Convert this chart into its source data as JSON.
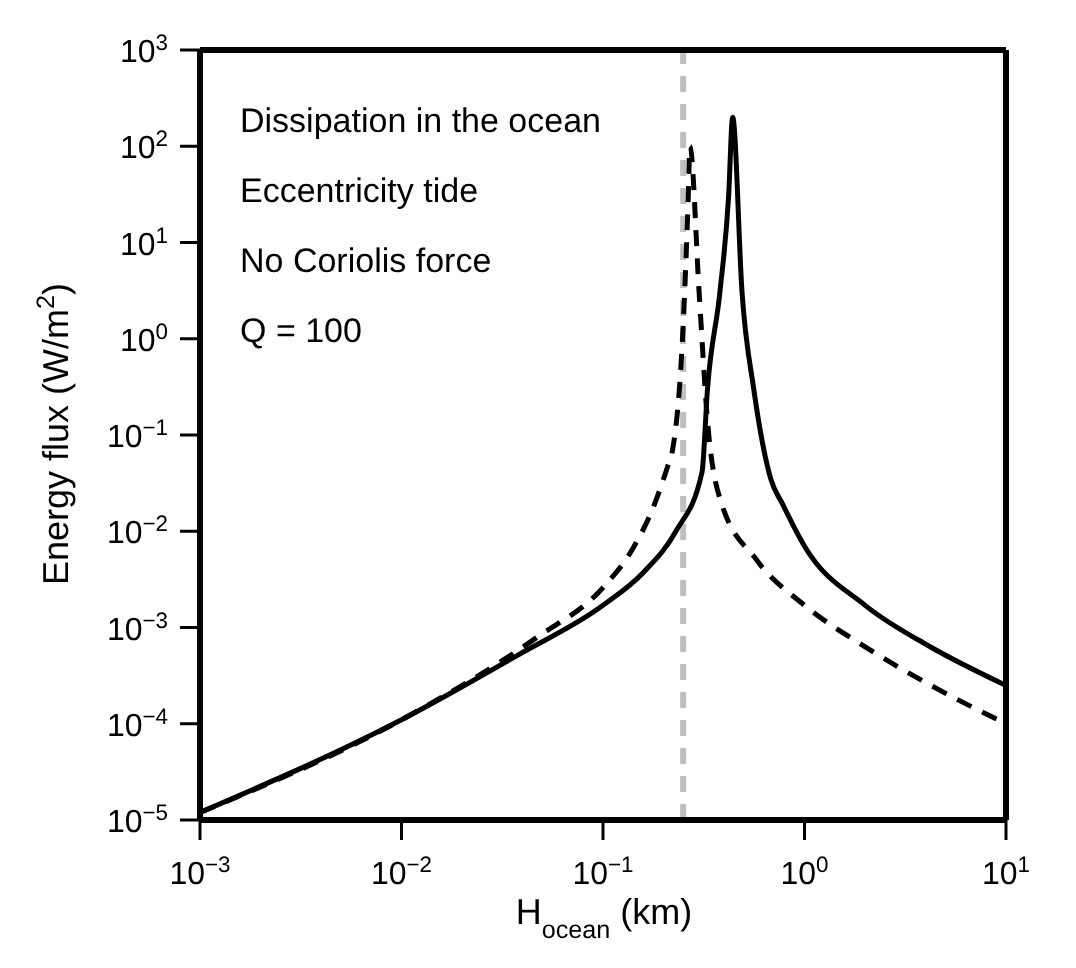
{
  "chart_data": {
    "type": "line",
    "xlabel": "H$_{ocean}$ (km)",
    "ylabel": "Energy flux (W/m$^{2}$)",
    "annotations": [
      "Dissipation in the ocean",
      "Eccentricity tide",
      "No Coriolis force",
      "Q = 100"
    ],
    "log": "xy",
    "legend": false,
    "grid": false,
    "marker": "none",
    "xlim": [
      0.001,
      10
    ],
    "ylim": [
      1e-05,
      1000
    ],
    "xticks": [
      {
        "value": 0.001,
        "label": "10$^{−3}$"
      },
      {
        "value": 0.01,
        "label": "10$^{−2}$"
      },
      {
        "value": 0.1,
        "label": "10$^{−1}$"
      },
      {
        "value": 1,
        "label": "10$^{0}$"
      },
      {
        "value": 10,
        "label": "10$^{1}$"
      }
    ],
    "yticks": [
      {
        "value": 1e-05,
        "label": "10$^{−5}$"
      },
      {
        "value": 0.0001,
        "label": "10$^{−4}$"
      },
      {
        "value": 0.001,
        "label": "10$^{−3}$"
      },
      {
        "value": 0.01,
        "label": "10$^{−2}$"
      },
      {
        "value": 0.1,
        "label": "10$^{−1}$"
      },
      {
        "value": 1,
        "label": "10$^{0}$"
      },
      {
        "value": 10,
        "label": "10$^{1}$"
      },
      {
        "value": 100,
        "label": "10$^{2}$"
      },
      {
        "value": 1000,
        "label": "10$^{3}$"
      }
    ],
    "ref_lines": [
      {
        "axis": "x",
        "value": 0.25,
        "color": "#c0c0c0",
        "line_style": "dashed"
      }
    ],
    "series": [
      {
        "color": "#000000",
        "line_style": "solid",
        "x": [
          0.001,
          0.01,
          0.038,
          0.1,
          0.16,
          0.23,
          0.31,
          0.33,
          0.38,
          0.42,
          0.44,
          0.49,
          0.56,
          0.68,
          0.78,
          1,
          2,
          4.1,
          10
        ],
        "values": [
          1.2e-05,
          0.00011,
          0.00052,
          0.0017,
          0.0038,
          0.01,
          0.041,
          0.3,
          3,
          30,
          200,
          3,
          0.3,
          0.035,
          0.019,
          0.007,
          0.0017,
          0.00065,
          0.00025
        ]
      },
      {
        "color": "#000000",
        "line_style": "dashed",
        "x": [
          0.001,
          0.01,
          0.047,
          0.1,
          0.14,
          0.18,
          0.21,
          0.22,
          0.25,
          0.265,
          0.27,
          0.3,
          0.33,
          0.38,
          0.58,
          1,
          2,
          4.1,
          10
        ],
        "values": [
          1.2e-05,
          0.00011,
          0.00079,
          0.0026,
          0.0065,
          0.019,
          0.048,
          0.065,
          1.4,
          30,
          100,
          3,
          0.14,
          0.022,
          0.005,
          0.0017,
          0.00063,
          0.00026,
          0.0001
        ]
      }
    ]
  }
}
